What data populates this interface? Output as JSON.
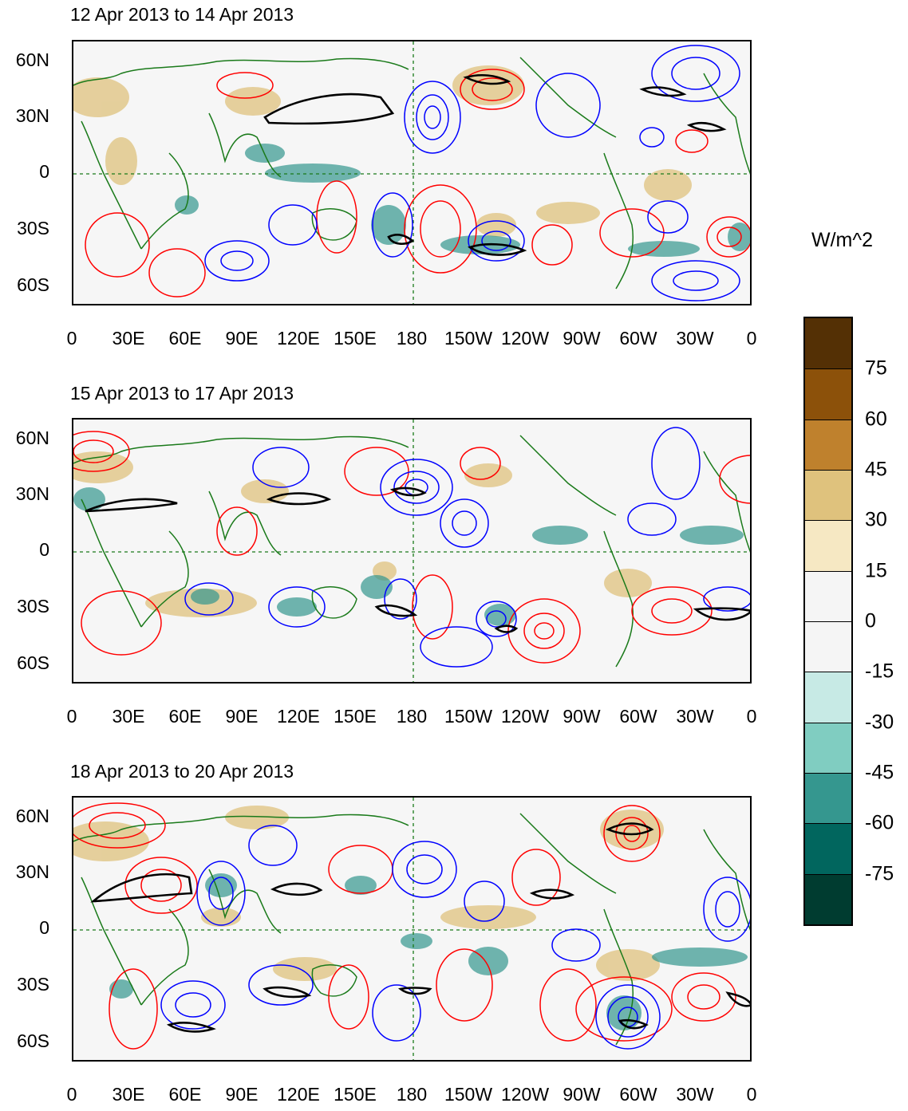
{
  "panels": [
    {
      "title": "12 Apr 2013 to 14 Apr 2013"
    },
    {
      "title": "15 Apr 2013 to 17 Apr 2013"
    },
    {
      "title": "18 Apr 2013 to 20 Apr 2013"
    }
  ],
  "lat_ticks": [
    "60N",
    "30N",
    "0",
    "30S",
    "60S"
  ],
  "lon_ticks": [
    "0",
    "30E",
    "60E",
    "90E",
    "120E",
    "150E",
    "180",
    "150W",
    "120W",
    "90W",
    "60W",
    "30W",
    "0"
  ],
  "colorbar": {
    "title": "W/m^2",
    "labels": [
      "75",
      "60",
      "45",
      "30",
      "15",
      "0",
      "-15",
      "-30",
      "-45",
      "-60",
      "-75"
    ],
    "colors": [
      "#543005",
      "#8c510a",
      "#bf812d",
      "#dfc27d",
      "#f6e8c3",
      "#f5f5f5",
      "#f5f5f5",
      "#c7eae5",
      "#80cdc1",
      "#35978f",
      "#01665e",
      "#003c30"
    ]
  },
  "styling": {
    "positive_contour_color": "#ff0000",
    "negative_contour_color": "#0000ff",
    "coastline_color": "#1a7a1a",
    "significance_contour_color": "#000000"
  }
}
